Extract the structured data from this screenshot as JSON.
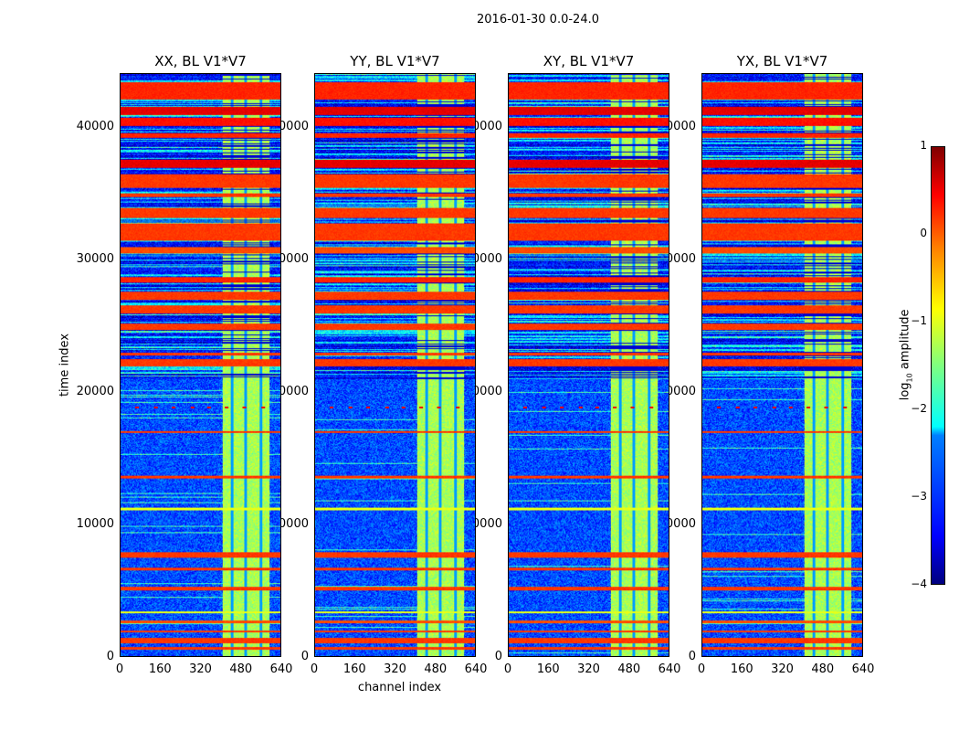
{
  "figure": {
    "suptitle": "2016-01-30 0.0-24.0"
  },
  "chart_data": {
    "type": "heatmap",
    "panels": [
      {
        "title": "XX, BL V1*V7",
        "ylabel": "time index",
        "xlabel": ""
      },
      {
        "title": "YY, BL V1*V7",
        "ylabel": "",
        "xlabel": "channel index"
      },
      {
        "title": "XY, BL V1*V7",
        "ylabel": "",
        "xlabel": ""
      },
      {
        "title": "YX, BL V1*V7",
        "ylabel": "",
        "xlabel": ""
      }
    ],
    "xlim": [
      0,
      640
    ],
    "ylim": [
      0,
      44070
    ],
    "xticks": [
      "0",
      "160",
      "320",
      "480",
      "640"
    ],
    "xtick_values": [
      0,
      160,
      320,
      480,
      640
    ],
    "yticks": [
      "0",
      "10000",
      "20000",
      "30000",
      "40000"
    ],
    "ytick_values": [
      0,
      10000,
      20000,
      30000,
      40000
    ],
    "colorbar": {
      "label": "log10 amplitude",
      "range": [
        -4,
        1
      ],
      "ticks": [
        "1",
        "0",
        "−1",
        "−2",
        "−3",
        "−4"
      ],
      "tick_values": [
        1,
        0,
        -1,
        -2,
        -3,
        -4
      ],
      "colormap": "jet"
    },
    "background_level": -3.0,
    "channel_band": {
      "channels": [
        405,
        595
      ],
      "value": -1.3,
      "dark_stripes": [
        [
          440,
          450
        ],
        [
          495,
          505
        ],
        [
          555,
          565
        ]
      ],
      "stripe_value": -2.6
    },
    "flagged_time_ranges": [
      [
        42200,
        43500,
        0.2
      ],
      [
        41000,
        41600,
        0.5
      ],
      [
        40200,
        40800,
        0.3
      ],
      [
        39300,
        39600,
        0.2
      ],
      [
        37000,
        37600,
        0.5
      ],
      [
        35500,
        36500,
        0.1
      ],
      [
        34800,
        35100,
        0.1
      ],
      [
        33200,
        34000,
        0.1
      ],
      [
        31500,
        32800,
        0.1
      ],
      [
        30500,
        31000,
        0.0
      ],
      [
        28300,
        28700,
        0.2
      ],
      [
        27000,
        27600,
        0.1
      ],
      [
        26000,
        26600,
        0.1
      ],
      [
        24700,
        25200,
        0.1
      ],
      [
        22800,
        23000,
        0.1
      ],
      [
        22000,
        22500,
        0.1
      ],
      [
        16900,
        17100,
        0.1
      ],
      [
        13500,
        13700,
        0.1
      ],
      [
        11100,
        11250,
        -1.0
      ],
      [
        7500,
        7900,
        0.1
      ],
      [
        6500,
        6700,
        0.1
      ],
      [
        5000,
        5300,
        0.1
      ],
      [
        3300,
        3400,
        -1.0
      ],
      [
        2500,
        2700,
        0.0
      ],
      [
        1800,
        2000,
        0.1
      ],
      [
        1000,
        1400,
        0.1
      ],
      [
        500,
        700,
        0.1
      ]
    ],
    "marker_row": {
      "time": 18900,
      "channels": [
        65,
        140,
        210,
        285,
        350,
        420,
        490,
        565
      ]
    }
  }
}
